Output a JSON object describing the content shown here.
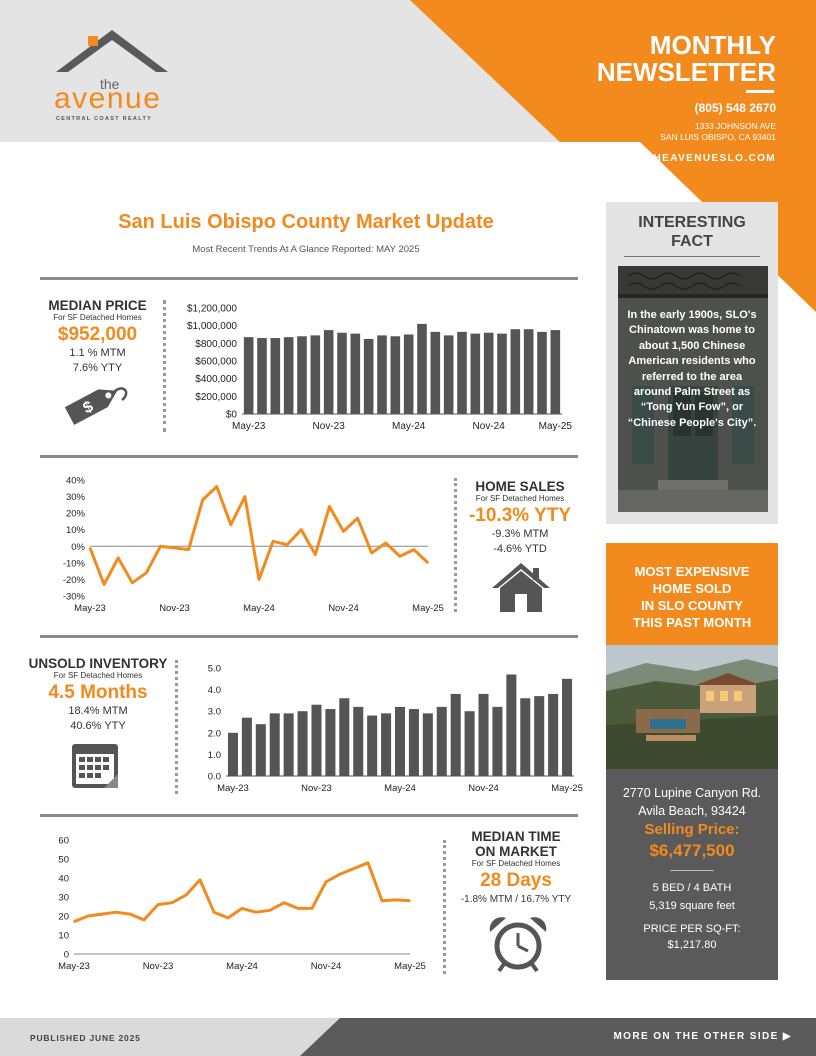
{
  "brand": {
    "the": "the",
    "name": "avenue",
    "tagline": "CENTRAL COAST REALTY",
    "accent": "#f28a1e"
  },
  "header": {
    "title_line1": "MONTHLY",
    "title_line2": "NEWSLETTER",
    "phone": "(805) 548 2670",
    "address_line1": "1333 JOHNSON AVE",
    "address_line2": "SAN LUIS OBISPO, CA 93401",
    "website": "THEAVENUESLO.COM"
  },
  "main": {
    "title": "San Luis Obispo County Market Update",
    "subtitle": "Most Recent Trends At A Glance Reported:  MAY 2025"
  },
  "median_price": {
    "title": "MEDIAN PRICE",
    "sub": "For SF Detached Homes",
    "value": "$952,000",
    "mtm": "1.1 % MTM",
    "yty": "7.6% YTY",
    "icon": "price-tag-icon"
  },
  "home_sales": {
    "title": "HOME SALES",
    "sub": "For SF Detached Homes",
    "value": "-10.3% YTY",
    "mtm": "-9.3% MTM",
    "ytd": "-4.6% YTD",
    "icon": "house-icon"
  },
  "inventory": {
    "title": "UNSOLD INVENTORY",
    "sub": "For SF Detached Homes",
    "value": "4.5 Months",
    "mtm": "18.4% MTM",
    "yty": "40.6% YTY",
    "icon": "calendar-icon"
  },
  "time_on_market": {
    "title_line1": "MEDIAN TIME",
    "title_line2": "ON MARKET",
    "sub": "For SF Detached Homes",
    "value": "28 Days",
    "change": "-1.8% MTM / 16.7% YTY",
    "icon": "alarm-clock-icon"
  },
  "fact": {
    "title_line1": "INTERESTING",
    "title_line2": "FACT",
    "text": "In the early 1900s, SLO's Chinatown was home to about 1,500 Chinese American residents who referred to the area around Palm Street as “Tong Yun Fow”, or “Chinese People's City”."
  },
  "expensive": {
    "title_line1": "MOST EXPENSIVE",
    "title_line2": "HOME SOLD",
    "title_line3": "IN SLO COUNTY",
    "title_line4": "THIS PAST MONTH",
    "address1": "2770 Lupine Canyon Rd.",
    "address2": "Avila Beach, 93424",
    "price_label": "Selling Price:",
    "price": "$6,477,500",
    "beds_baths": "5 BED / 4 BATH",
    "sqft": "5,319 square feet",
    "ppsf_label": "PRICE PER SQ-FT:",
    "ppsf": "$1,217.80"
  },
  "footer": {
    "published": "PUBLISHED JUNE 2025",
    "more": "MORE ON THE OTHER SIDE"
  },
  "chart_data": [
    {
      "type": "bar",
      "name": "median-price",
      "x_ticks": [
        "May-23",
        "Nov-23",
        "May-24",
        "Nov-24",
        "May-25"
      ],
      "y_ticks": [
        "$0",
        "$200,000",
        "$400,000",
        "$600,000",
        "$800,000",
        "$1,000,000",
        "$1,200,000"
      ],
      "ylim": [
        0,
        1200000
      ],
      "values": [
        870000,
        860000,
        860000,
        870000,
        880000,
        890000,
        950000,
        920000,
        910000,
        850000,
        890000,
        880000,
        900000,
        1020000,
        930000,
        890000,
        930000,
        910000,
        920000,
        910000,
        960000,
        960000,
        930000,
        950000
      ]
    },
    {
      "type": "line",
      "name": "home-sales",
      "x_ticks": [
        "May-23",
        "Nov-23",
        "May-24",
        "Nov-24",
        "May-25"
      ],
      "y_ticks": [
        "-30%",
        "-20%",
        "-10%",
        "0%",
        "10%",
        "20%",
        "30%",
        "40%"
      ],
      "ylim": [
        -30,
        40
      ],
      "values": [
        -1,
        -23,
        -7,
        -22,
        -16,
        0,
        -1,
        -2,
        28,
        36,
        13,
        30,
        -20,
        3,
        1,
        10,
        -5,
        24,
        9,
        17,
        -4,
        2,
        -6,
        -2,
        -10
      ]
    },
    {
      "type": "bar",
      "name": "unsold-inventory",
      "x_ticks": [
        "May-23",
        "Nov-23",
        "May-24",
        "Nov-24",
        "May-25"
      ],
      "y_ticks": [
        "0.0",
        "1.0",
        "2.0",
        "3.0",
        "4.0",
        "5.0"
      ],
      "ylim": [
        0,
        5
      ],
      "values": [
        2.0,
        2.7,
        2.4,
        2.9,
        2.9,
        3.0,
        3.3,
        3.1,
        3.6,
        3.2,
        2.8,
        2.9,
        3.2,
        3.1,
        2.9,
        3.2,
        3.8,
        3.0,
        3.8,
        3.2,
        4.7,
        3.6,
        3.7,
        3.8,
        4.5
      ]
    },
    {
      "type": "line",
      "name": "median-time-on-market",
      "x_ticks": [
        "May-23",
        "Nov-23",
        "May-24",
        "Nov-24",
        "May-25"
      ],
      "y_ticks": [
        "0",
        "10",
        "20",
        "30",
        "40",
        "50",
        "60"
      ],
      "ylim": [
        0,
        60
      ],
      "values": [
        17,
        20,
        21,
        22,
        21,
        18,
        26,
        27,
        31,
        39,
        22,
        19,
        24,
        22,
        23,
        27,
        24,
        24,
        38,
        42,
        45,
        48,
        28,
        28.5,
        28
      ]
    }
  ]
}
